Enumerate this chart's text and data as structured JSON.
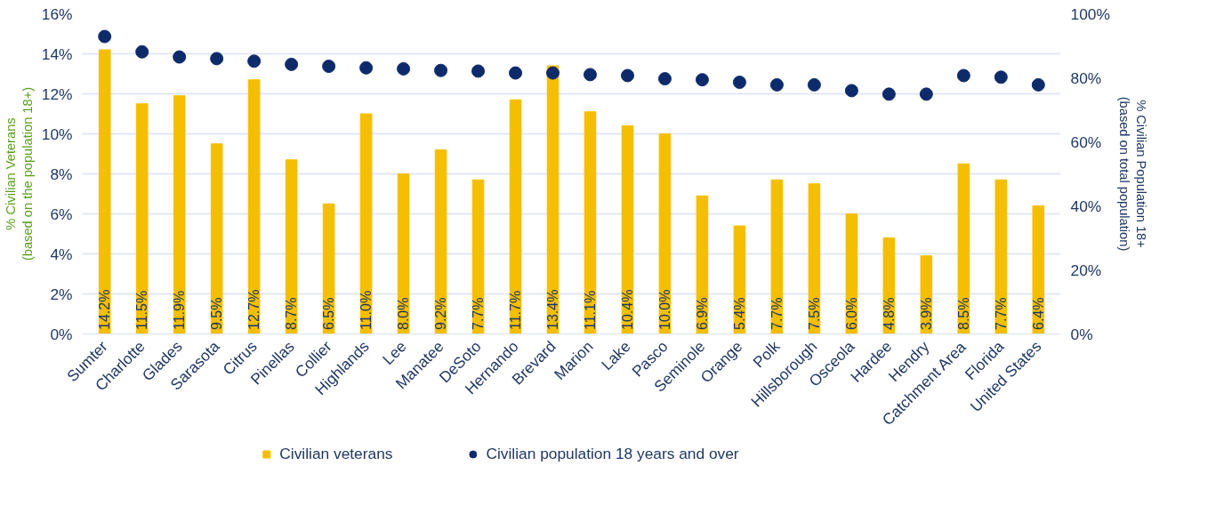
{
  "chart_data": {
    "type": "bar",
    "ylabel": "% Civilian Veterans\n(based on the population 18+)",
    "y2label": "% Civilian Population 18+\n(based on total population)",
    "categories": [
      "Sumter",
      "Charlotte",
      "Glades",
      "Sarasota",
      "Citrus",
      "Pinellas",
      "Collier",
      "Highlands",
      "Lee",
      "Manatee",
      "DeSoto",
      "Hernando",
      "Brevard",
      "Marion",
      "Lake",
      "Pasco",
      "Seminole",
      "Orange",
      "Polk",
      "Hillsborough",
      "Osceola",
      "Hardee",
      "Hendry",
      "Catchment Area",
      "Florida",
      "United States"
    ],
    "series": [
      {
        "name": "Civilian veterans",
        "color": "#f5be00",
        "values": [
          14.2,
          11.5,
          11.9,
          9.5,
          12.7,
          8.7,
          6.5,
          11.0,
          8.0,
          9.2,
          7.7,
          11.7,
          13.4,
          11.1,
          10.4,
          10.0,
          6.9,
          5.4,
          7.7,
          7.5,
          6.0,
          4.8,
          3.9,
          8.5,
          7.7,
          6.4
        ],
        "value_labels": [
          "14.2%",
          "11.5%",
          "11.9%",
          "9.5%",
          "12.7%",
          "8.7%",
          "6.5%",
          "11.0%",
          "8.0%",
          "9.2%",
          "7.7%",
          "11.7%",
          "13.4%",
          "11.1%",
          "10.4%",
          "10.0%",
          "6.9%",
          "5.4%",
          "7.7%",
          "7.5%",
          "6.0%",
          "4.8%",
          "3.9%",
          "8.5%",
          "7.7%",
          "6.4%"
        ]
      },
      {
        "name": "Civilian population 18 years and over",
        "type": "scatter",
        "axis": "y2",
        "color": "#0d2b6b",
        "values": [
          92.9,
          88.1,
          86.5,
          86.0,
          85.2,
          84.2,
          83.6,
          83.1,
          82.8,
          82.3,
          82.1,
          81.5,
          81.5,
          81.0,
          80.7,
          79.7,
          79.4,
          78.6,
          77.8,
          77.8,
          76.0,
          74.9,
          74.9,
          80.7,
          80.2,
          77.8
        ]
      }
    ],
    "ylim": [
      0,
      16
    ],
    "yticks": [
      {
        "value": 0,
        "label": "0%"
      },
      {
        "value": 2,
        "label": "2%"
      },
      {
        "value": 4,
        "label": "4%"
      },
      {
        "value": 6,
        "label": "6%"
      },
      {
        "value": 8,
        "label": "8%"
      },
      {
        "value": 10,
        "label": "10%"
      },
      {
        "value": 12,
        "label": "12%"
      },
      {
        "value": 14,
        "label": "14%"
      },
      {
        "value": 16,
        "label": "16%"
      }
    ],
    "y2lim": [
      0,
      100
    ],
    "y2ticks": [
      {
        "value": 0,
        "label": "0%"
      },
      {
        "value": 20,
        "label": "20%"
      },
      {
        "value": 40,
        "label": "40%"
      },
      {
        "value": 60,
        "label": "60%"
      },
      {
        "value": 80,
        "label": "80%"
      },
      {
        "value": 100,
        "label": "100%"
      }
    ],
    "grid": "y",
    "legend": "bottom",
    "marker": "circle"
  }
}
